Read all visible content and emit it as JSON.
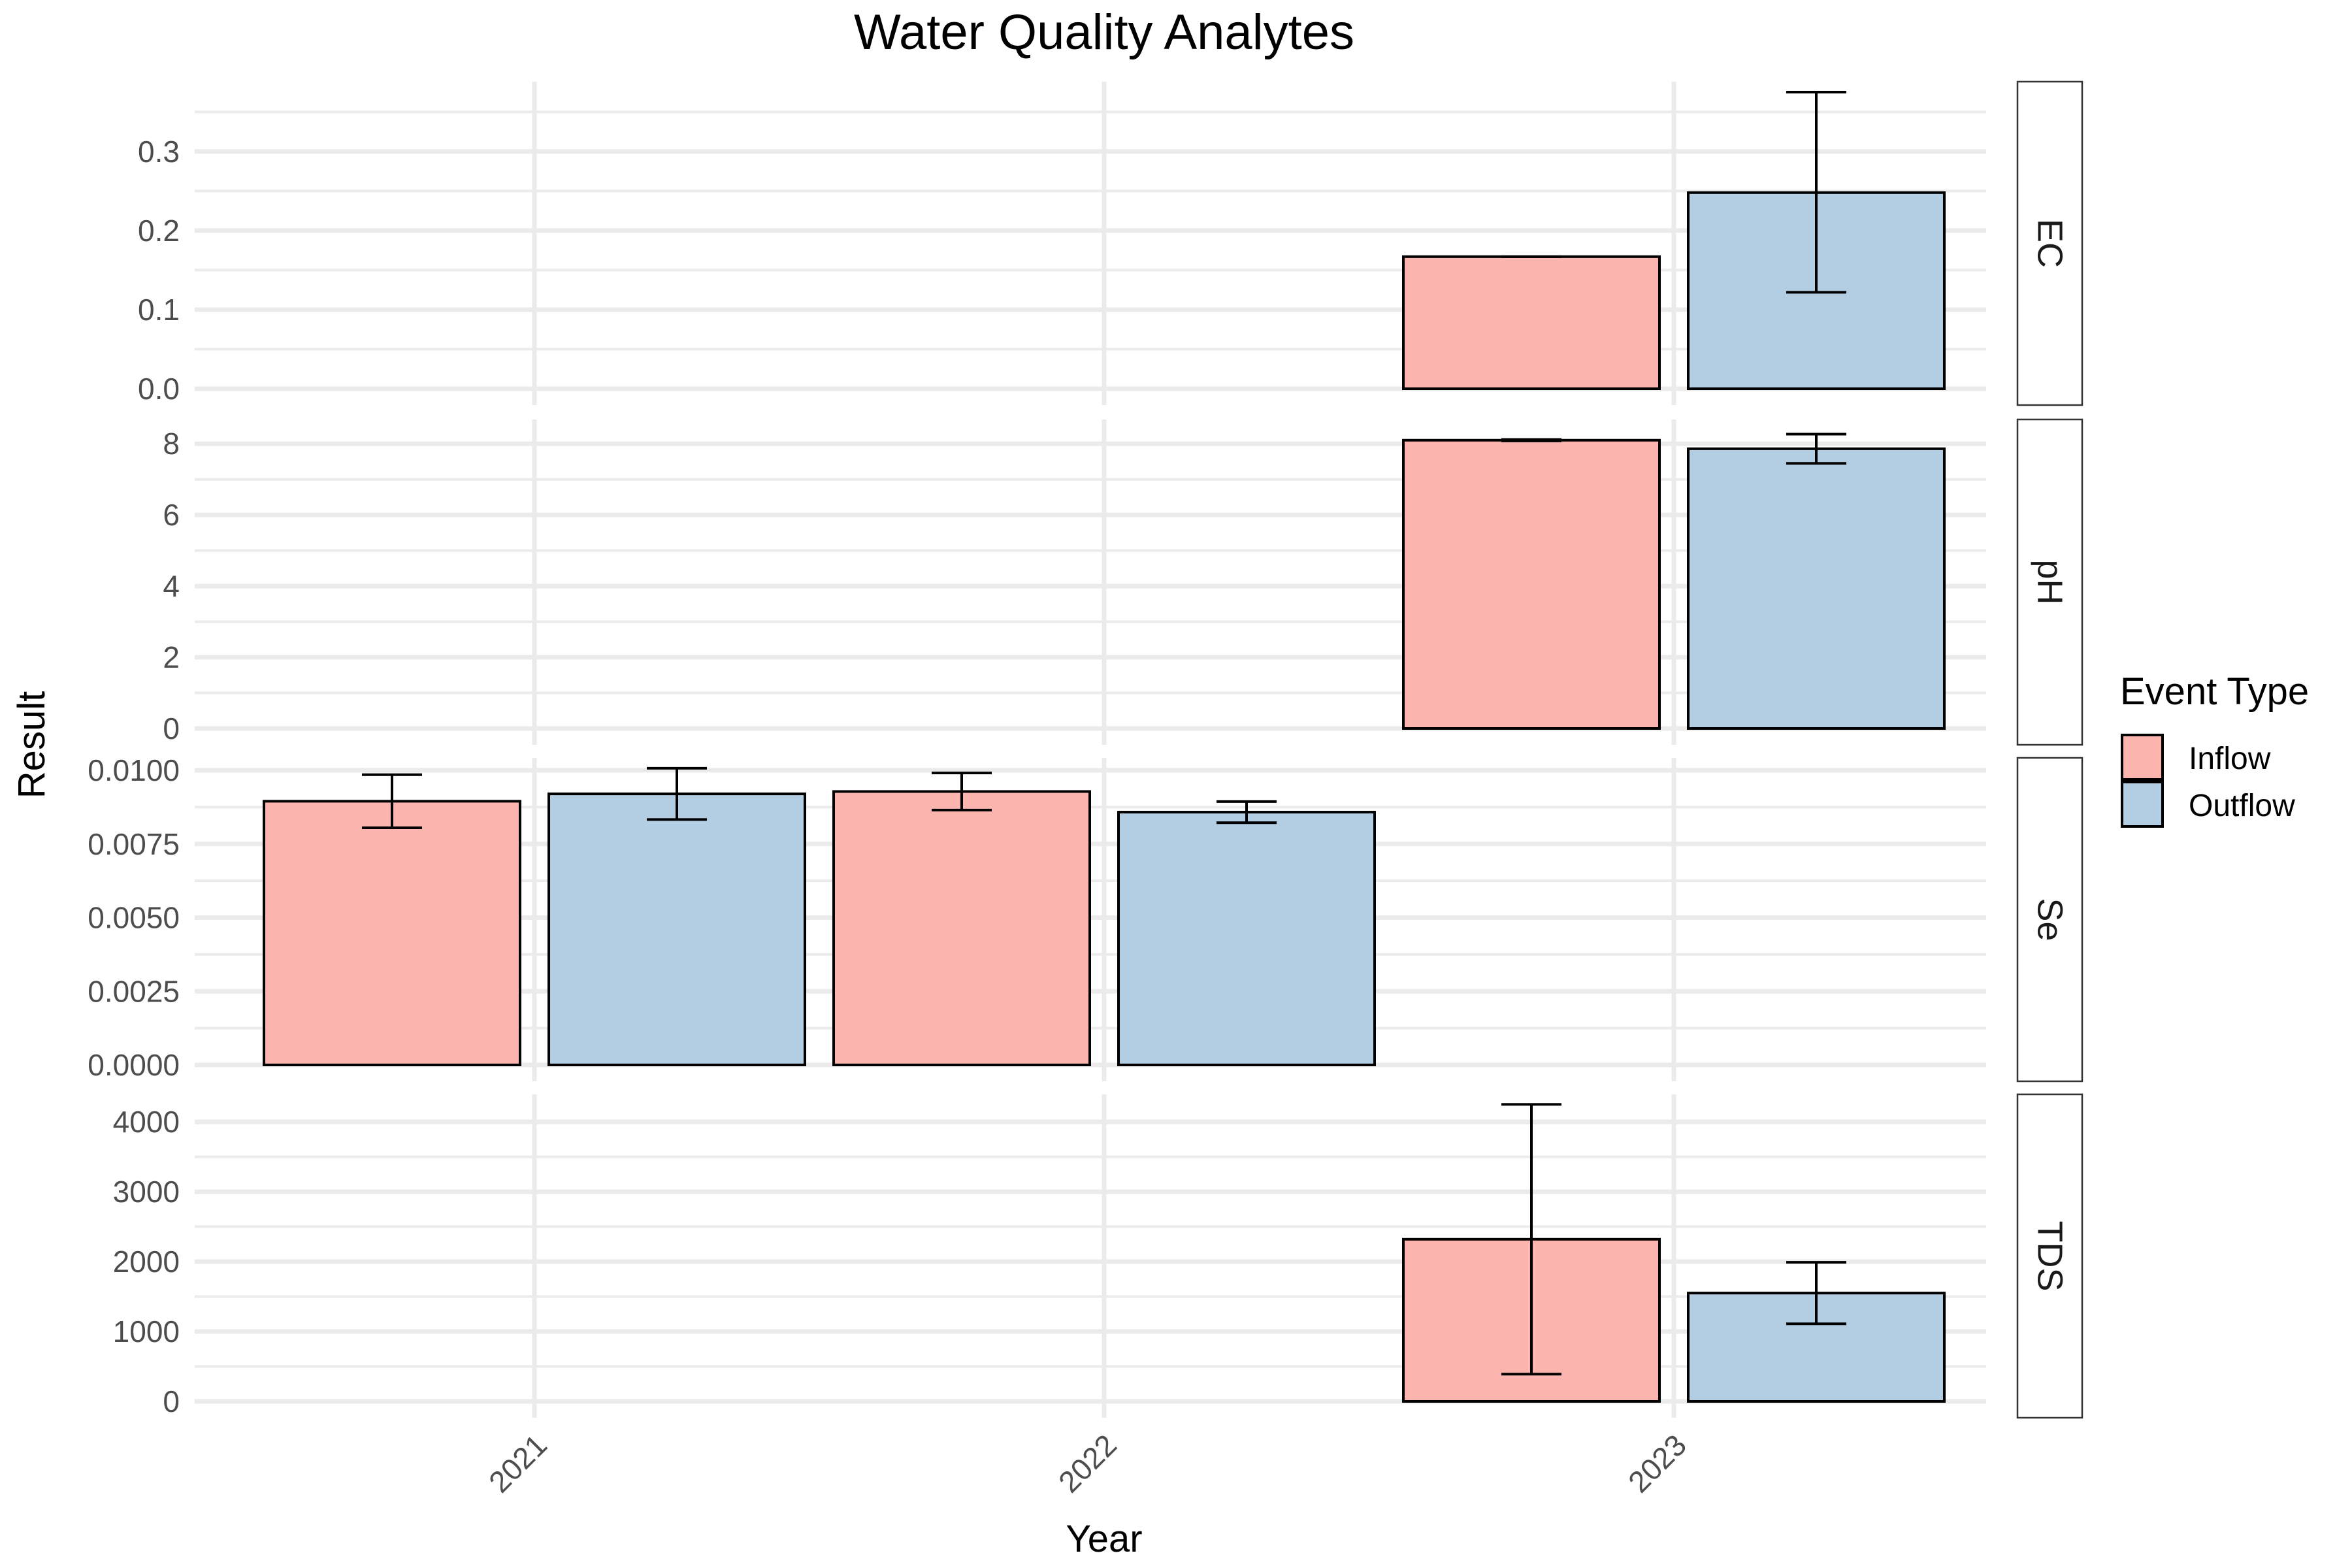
{
  "chart_data": {
    "type": "bar",
    "title": "Water Quality Analytes",
    "xlabel": "Year",
    "ylabel": "Result",
    "categories": [
      "2021",
      "2022",
      "2023"
    ],
    "legend": {
      "title": "Event Type",
      "position": "right",
      "entries": [
        {
          "name": "Inflow",
          "color": "#FBB4AE"
        },
        {
          "name": "Outflow",
          "color": "#B3CDE3"
        }
      ]
    },
    "grid": true,
    "facets": [
      {
        "label": "EC",
        "ylim": [
          0,
          0.38
        ],
        "yticks": [
          "0.0",
          "0.1",
          "0.2",
          "0.3"
        ],
        "series": [
          {
            "name": "Inflow",
            "values": [
              null,
              null,
              0.167
            ],
            "err_low": [
              null,
              null,
              0.167
            ],
            "err_high": [
              null,
              null,
              0.167
            ]
          },
          {
            "name": "Outflow",
            "values": [
              null,
              null,
              0.248
            ],
            "err_low": [
              null,
              null,
              0.122
            ],
            "err_high": [
              null,
              null,
              0.375
            ]
          }
        ]
      },
      {
        "label": "pH",
        "ylim": [
          0,
          8.5
        ],
        "yticks": [
          "0",
          "2",
          "4",
          "6",
          "8"
        ],
        "series": [
          {
            "name": "Inflow",
            "values": [
              null,
              null,
              8.1
            ],
            "err_low": [
              null,
              null,
              8.08
            ],
            "err_high": [
              null,
              null,
              8.12
            ]
          },
          {
            "name": "Outflow",
            "values": [
              null,
              null,
              7.86
            ],
            "err_low": [
              null,
              null,
              7.45
            ],
            "err_high": [
              null,
              null,
              8.27
            ]
          }
        ]
      },
      {
        "label": "Se",
        "ylim": [
          0,
          0.0102
        ],
        "yticks": [
          "0.0000",
          "0.0025",
          "0.0050",
          "0.0075",
          "0.0100"
        ],
        "series": [
          {
            "name": "Inflow",
            "values": [
              0.00895,
              0.00928,
              null
            ],
            "err_low": [
              0.00805,
              0.00865,
              null
            ],
            "err_high": [
              0.00985,
              0.00991,
              null
            ]
          },
          {
            "name": "Outflow",
            "values": [
              0.0092,
              0.00858,
              null
            ],
            "err_low": [
              0.00833,
              0.00822,
              null
            ],
            "err_high": [
              0.01007,
              0.00894,
              null
            ]
          }
        ]
      },
      {
        "label": "TDS",
        "ylim": [
          0,
          4300
        ],
        "yticks": [
          "0",
          "1000",
          "2000",
          "3000",
          "4000"
        ],
        "series": [
          {
            "name": "Inflow",
            "values": [
              null,
              null,
              2320
            ],
            "err_low": [
              null,
              null,
              390
            ],
            "err_high": [
              null,
              null,
              4250
            ]
          },
          {
            "name": "Outflow",
            "values": [
              null,
              null,
              1550
            ],
            "err_low": [
              null,
              null,
              1110
            ],
            "err_high": [
              null,
              null,
              1990
            ]
          }
        ]
      }
    ]
  }
}
